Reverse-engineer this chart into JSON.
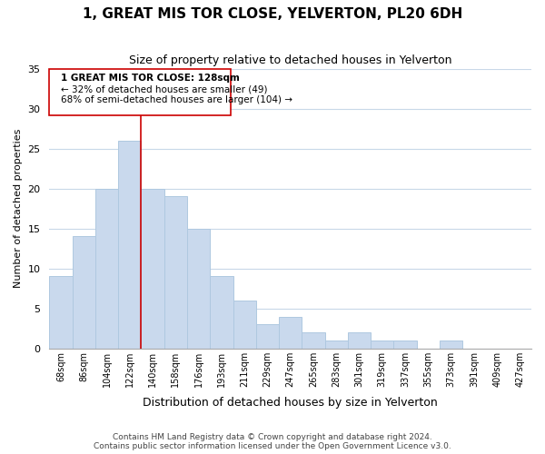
{
  "title": "1, GREAT MIS TOR CLOSE, YELVERTON, PL20 6DH",
  "subtitle": "Size of property relative to detached houses in Yelverton",
  "xlabel": "Distribution of detached houses by size in Yelverton",
  "ylabel": "Number of detached properties",
  "bar_labels": [
    "68sqm",
    "86sqm",
    "104sqm",
    "122sqm",
    "140sqm",
    "158sqm",
    "176sqm",
    "193sqm",
    "211sqm",
    "229sqm",
    "247sqm",
    "265sqm",
    "283sqm",
    "301sqm",
    "319sqm",
    "337sqm",
    "355sqm",
    "373sqm",
    "391sqm",
    "409sqm",
    "427sqm"
  ],
  "bar_values": [
    9,
    14,
    20,
    26,
    20,
    19,
    15,
    9,
    6,
    3,
    4,
    2,
    1,
    2,
    1,
    1,
    0,
    1,
    0,
    0,
    0
  ],
  "bar_color": "#c9d9ed",
  "bar_edge_color": "#afc8e0",
  "highlight_color": "#cc0000",
  "ylim": [
    0,
    35
  ],
  "yticks": [
    0,
    5,
    10,
    15,
    20,
    25,
    30,
    35
  ],
  "annotation_title": "1 GREAT MIS TOR CLOSE: 128sqm",
  "annotation_line1": "← 32% of detached houses are smaller (49)",
  "annotation_line2": "68% of semi-detached houses are larger (104) →",
  "footer_line1": "Contains HM Land Registry data © Crown copyright and database right 2024.",
  "footer_line2": "Contains public sector information licensed under the Open Government Licence v3.0.",
  "background_color": "#ffffff",
  "grid_color": "#c8d8e8"
}
